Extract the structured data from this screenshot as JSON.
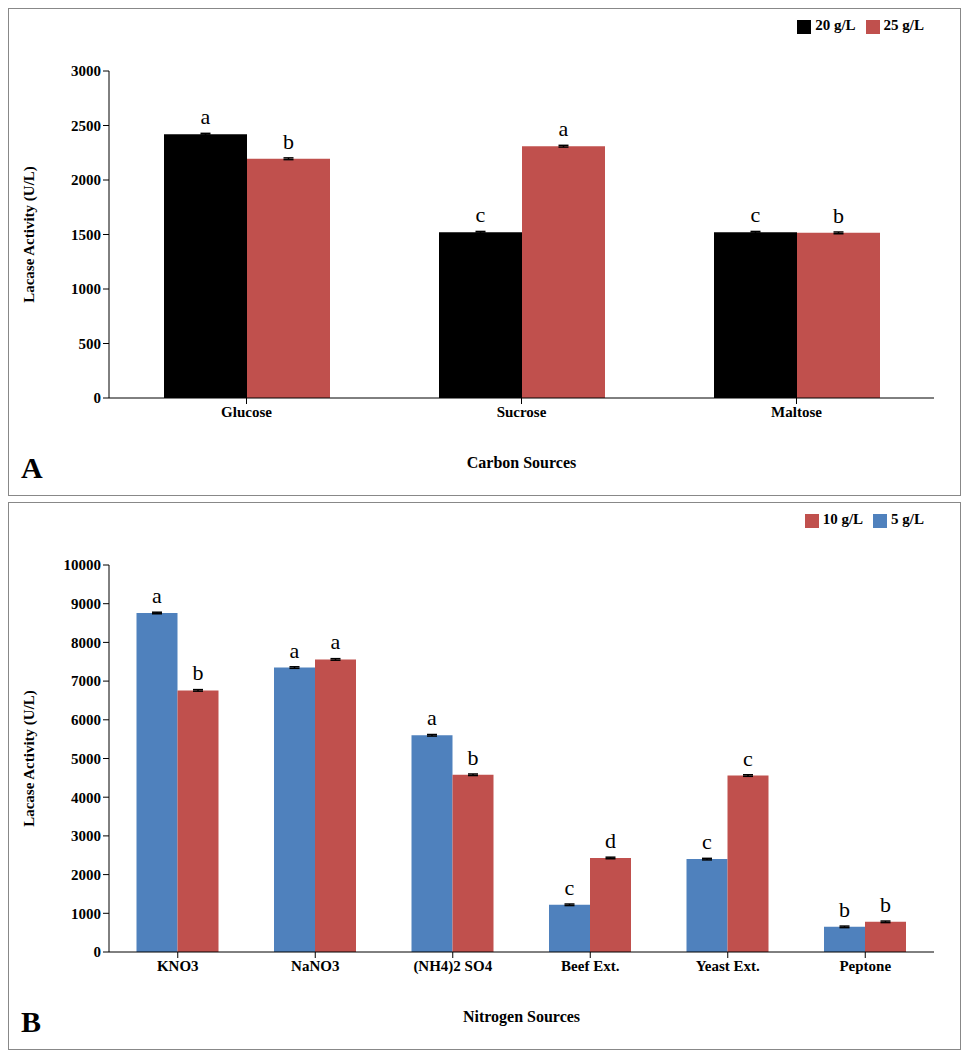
{
  "chart_data": [
    {
      "type": "bar",
      "panel": "A",
      "x_label": "Carbon Sources",
      "y_label": "Lacase Activity (U/L)",
      "categories": [
        "Glucose",
        "Sucrose",
        "Maltose"
      ],
      "series": [
        {
          "name": "20 g/L",
          "color": "#000000",
          "values": [
            2420,
            1520,
            1520
          ],
          "error": [
            8,
            8,
            8
          ],
          "annotations": [
            "a",
            "c",
            "c"
          ]
        },
        {
          "name": "25 g/L",
          "color": "#c0504d",
          "values": [
            2195,
            2310,
            1515
          ],
          "error": [
            8,
            8,
            8
          ],
          "annotations": [
            "b",
            "a",
            "b"
          ]
        }
      ],
      "ylim": [
        0,
        3000
      ],
      "yticks": [
        0,
        500,
        1000,
        1500,
        2000,
        2500,
        3000
      ],
      "grid": false,
      "legend": "upper right"
    },
    {
      "type": "bar",
      "panel": "B",
      "x_label": "Nitrogen Sources",
      "y_label": "Lacase Activity (U/L)",
      "categories": [
        "KNO3",
        "NaNO3",
        "(NH4)2 SO4",
        "Beef Ext.",
        "Yeast Ext.",
        "Peptone"
      ],
      "series": [
        {
          "name": "5 g/L",
          "color": "#4f81bd",
          "values": [
            8760,
            7350,
            5600,
            1220,
            2400,
            650
          ],
          "error": [
            20,
            20,
            20,
            20,
            20,
            20
          ],
          "annotations": [
            "a",
            "a",
            "a",
            "c",
            "c",
            "b"
          ]
        },
        {
          "name": "10 g/L",
          "color": "#c0504d",
          "values": [
            6760,
            7560,
            4580,
            2430,
            4560,
            780
          ],
          "error": [
            20,
            20,
            20,
            20,
            20,
            20
          ],
          "annotations": [
            "b",
            "a",
            "b",
            "d",
            "c",
            "b"
          ]
        }
      ],
      "ylim": [
        0,
        10000
      ],
      "yticks": [
        0,
        1000,
        2000,
        3000,
        4000,
        5000,
        6000,
        7000,
        8000,
        9000,
        10000
      ],
      "grid": false,
      "legend": "upper right"
    }
  ]
}
